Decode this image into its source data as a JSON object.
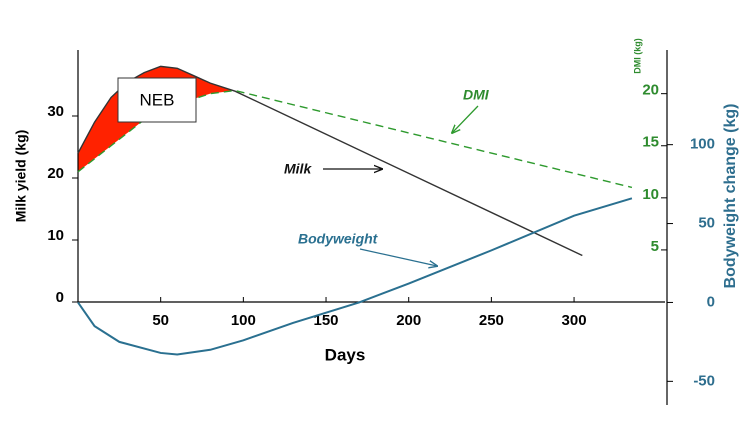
{
  "chart_data": {
    "type": "line",
    "x_label": "Days",
    "y_label": "Milk yield (kg)",
    "y2_label": "DMI (kg)",
    "y3_label": "Bodyweight change (kg)",
    "xlim": [
      0,
      355
    ],
    "xticks": [
      50,
      100,
      150,
      200,
      250,
      300
    ],
    "ylim": [
      0,
      40
    ],
    "yticks": [
      0,
      10,
      20,
      30
    ],
    "y2lim": [
      0,
      24
    ],
    "y2ticks": [
      5,
      10,
      15,
      20
    ],
    "y3lim": [
      -65,
      160
    ],
    "y3ticks": [
      -50,
      0,
      50,
      100
    ],
    "annotations": [
      "NEB",
      "DMI",
      "Milk",
      "Bodyweight"
    ],
    "series": [
      {
        "name": "Milk",
        "color": "#333333",
        "axis": "y",
        "x": [
          0,
          10,
          20,
          30,
          40,
          50,
          60,
          70,
          80,
          95,
          305
        ],
        "values": [
          24,
          29,
          33,
          35.5,
          37,
          38,
          37.7,
          36.5,
          35.3,
          34,
          7.5
        ]
      },
      {
        "name": "DMI",
        "color": "#2e9a2e",
        "axis": "y2",
        "dashed": true,
        "x": [
          0,
          20,
          40,
          60,
          80,
          95,
          335
        ],
        "values": [
          12.5,
          15,
          17.5,
          19,
          20,
          20.3,
          11
        ]
      },
      {
        "name": "Bodyweight",
        "color": "#2a7090",
        "axis": "y3",
        "x": [
          0,
          10,
          25,
          50,
          60,
          80,
          100,
          130,
          170,
          200,
          250,
          300,
          335
        ],
        "values": [
          0,
          -15,
          -25,
          -32,
          -33,
          -30,
          -24,
          -13,
          0,
          12,
          33,
          55,
          66
        ]
      }
    ]
  }
}
